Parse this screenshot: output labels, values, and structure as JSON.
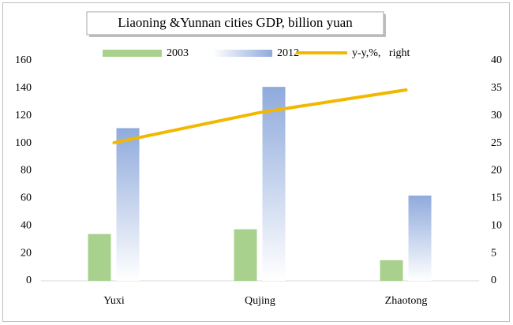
{
  "chart_data": {
    "type": "bar",
    "title": "Liaoning &Yunnan cities GDP, billion yuan",
    "categories": [
      "Yuxi",
      "Qujing",
      "Zhaotong"
    ],
    "series": [
      {
        "name": "2003",
        "color": "#a9d18e",
        "values": [
          34,
          37.5,
          15
        ]
      },
      {
        "name": "2012",
        "color": "#8faadc",
        "values": [
          111,
          141,
          62
        ]
      },
      {
        "name": "y-y,%,   right",
        "color": "#f2b800",
        "type": "line",
        "axis": "y2",
        "values": [
          25.1,
          30.6,
          34.7
        ]
      }
    ],
    "ylim": [
      0,
      160
    ],
    "yticks": [
      0,
      20,
      40,
      60,
      80,
      100,
      120,
      140,
      160
    ],
    "y2lim": [
      0,
      40
    ],
    "y2ticks": [
      0,
      5,
      10,
      15,
      20,
      25,
      30,
      35,
      40
    ],
    "grid": false
  }
}
